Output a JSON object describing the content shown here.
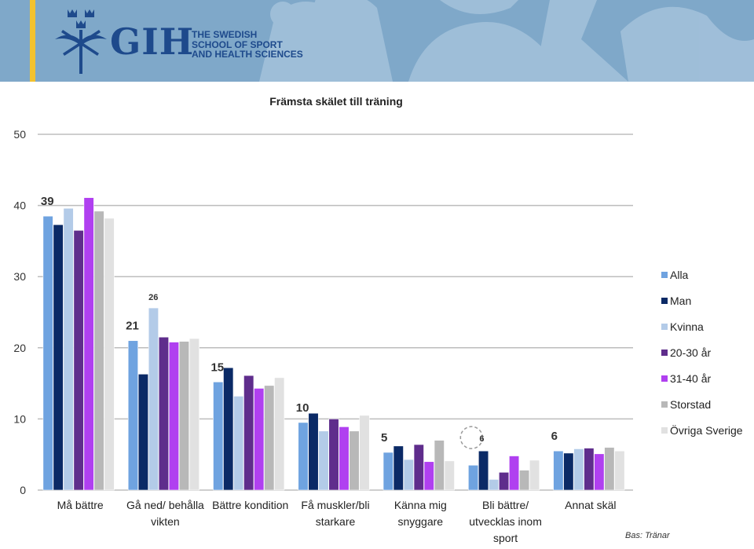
{
  "header": {
    "logo_text": "GIH",
    "logo_sub_lines": [
      "THE SWEDISH",
      "SCHOOL OF SPORT",
      "AND HEALTH SCIENCES"
    ]
  },
  "footnote": "Bas: Tränar",
  "colors": {
    "banner": "#7fa8c9",
    "stripe": "#f2c230",
    "brand": "#1e4a8c"
  },
  "chart_data": {
    "type": "bar",
    "title": "Främsta skälet till träning",
    "ylim": [
      0,
      50
    ],
    "yticks": [
      0,
      10,
      20,
      30,
      40,
      50
    ],
    "grid": true,
    "legend_position": "right",
    "categories": [
      [
        "Må bättre"
      ],
      [
        "Gå ned/ behålla",
        "vikten"
      ],
      [
        "Bättre kondition"
      ],
      [
        "Få muskler/bli",
        "starkare"
      ],
      [
        "Känna mig",
        "snyggare"
      ],
      [
        "Bli bättre/",
        "utvecklas inom",
        "sport"
      ],
      [
        "Annat skäl"
      ]
    ],
    "series": [
      {
        "name": "Alla",
        "color": "#6fa3e0",
        "values": [
          38.5,
          21,
          15.2,
          9.5,
          5.3,
          3.5,
          5.5
        ]
      },
      {
        "name": "Man",
        "color": "#0b2a66",
        "values": [
          37.3,
          16.3,
          17.2,
          10.8,
          6.2,
          5.5,
          5.2
        ]
      },
      {
        "name": "Kvinna",
        "color": "#b3cbe8",
        "values": [
          39.6,
          25.6,
          13.2,
          8.3,
          4.3,
          1.5,
          5.8
        ]
      },
      {
        "name": "20-30 år",
        "color": "#5f2d8c",
        "values": [
          36.5,
          21.5,
          16.1,
          10,
          6.4,
          2.5,
          5.9
        ]
      },
      {
        "name": "31-40 år",
        "color": "#b040f0",
        "values": [
          41.1,
          20.8,
          14.3,
          8.9,
          4,
          4.8,
          5.1
        ]
      },
      {
        "name": "Storstad",
        "color": "#b8b8b8",
        "values": [
          39.2,
          20.9,
          14.7,
          8.3,
          7,
          2.8,
          6
        ]
      },
      {
        "name": "Övriga Sverige",
        "color": "#e1e1e1",
        "values": [
          38.2,
          21.3,
          15.8,
          10.5,
          4.1,
          4.2,
          5.5
        ]
      }
    ],
    "annotations": [
      {
        "category_index": 0,
        "text": "39"
      },
      {
        "category_index": 1,
        "text": "21"
      },
      {
        "category_index": 1,
        "text": "26"
      },
      {
        "category_index": 2,
        "text": "15"
      },
      {
        "category_index": 3,
        "text": "10"
      },
      {
        "category_index": 4,
        "text": "5"
      },
      {
        "category_index": 5,
        "text": "6"
      },
      {
        "category_index": 6,
        "text": "6"
      }
    ]
  }
}
